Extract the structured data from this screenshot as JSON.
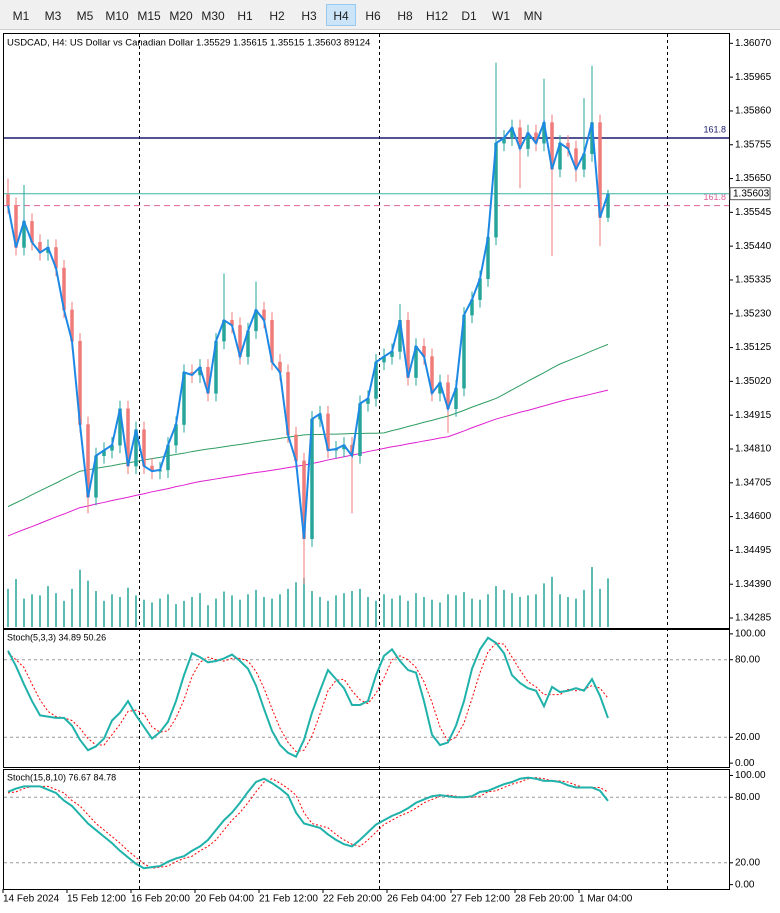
{
  "toolbar": {
    "buttons": [
      {
        "label": "M1"
      },
      {
        "label": "M3"
      },
      {
        "label": "M5"
      },
      {
        "label": "M10"
      },
      {
        "label": "M15"
      },
      {
        "label": "M20"
      },
      {
        "label": "M30"
      },
      {
        "label": "H1"
      },
      {
        "label": "H2"
      },
      {
        "label": "H3"
      },
      {
        "label": "H4",
        "selected": true
      },
      {
        "label": "H6"
      },
      {
        "label": "H8"
      },
      {
        "label": "H12"
      },
      {
        "label": "D1"
      },
      {
        "label": "W1"
      },
      {
        "label": "MN"
      }
    ]
  },
  "chart_data": [
    {
      "type": "candlestick",
      "title": "USDCAD, H4:  US Dollar vs Canadian Dollar  1.35529 1.35615 1.35515 1.35603  89124",
      "categories": [
        "14 Feb 2024",
        null,
        null,
        null,
        null,
        null,
        null,
        null,
        "15 Feb 12:00",
        null,
        null,
        null,
        null,
        null,
        null,
        null,
        "16 Feb 20:00",
        null,
        null,
        null,
        null,
        null,
        null,
        null,
        "20 Feb 04:00",
        null,
        null,
        null,
        null,
        null,
        null,
        null,
        "21 Feb 12:00",
        null,
        null,
        null,
        null,
        null,
        null,
        null,
        "22 Feb 20:00",
        null,
        null,
        null,
        null,
        null,
        null,
        null,
        "26 Feb 04:00",
        null,
        null,
        null,
        null,
        null,
        null,
        null,
        "27 Feb 12:00",
        null,
        null,
        null,
        null,
        null,
        null,
        null,
        "28 Feb 20:00",
        null,
        null,
        null,
        null,
        null,
        null,
        null,
        "1 Mar 04:00",
        null,
        null,
        null
      ],
      "open": [
        1.356,
        1.35566,
        1.35436,
        1.35517,
        1.35452,
        1.3542,
        1.35436,
        1.35372,
        1.35242,
        1.35145,
        1.34886,
        1.3466,
        1.34789,
        1.34806,
        1.34822,
        1.34935,
        1.34757,
        1.3487,
        1.34757,
        1.34741,
        1.34745,
        1.34822,
        1.34886,
        1.35048,
        1.3504,
        1.35064,
        1.34983,
        1.35145,
        1.3521,
        1.35194,
        1.35097,
        1.35177,
        1.35242,
        1.3521,
        1.3508,
        1.35048,
        1.34854,
        1.34773,
        1.34531,
        1.34903,
        1.34919,
        1.34806,
        1.3481,
        1.34822,
        1.34789,
        1.34951,
        1.34967,
        1.3508,
        1.35097,
        1.35113,
        1.3521,
        1.35032,
        1.35129,
        1.35097,
        1.34983,
        1.35016,
        1.34935,
        1.34999,
        1.35226,
        1.35274,
        1.35339,
        1.35468,
        1.3576,
        1.35776,
        1.35808,
        1.35743,
        1.35792,
        1.3576,
        1.35824,
        1.35679,
        1.3576,
        1.35743,
        1.35679,
        1.35727,
        1.35824,
        1.35529
      ],
      "high": [
        1.3565,
        1.35591,
        1.3563,
        1.35542,
        1.35477,
        1.35461,
        1.35461,
        1.35397,
        1.35267,
        1.3517,
        1.34911,
        1.34814,
        1.34831,
        1.34847,
        1.3496,
        1.3496,
        1.34895,
        1.34895,
        1.34782,
        1.3477,
        1.34847,
        1.34911,
        1.35073,
        1.35073,
        1.35089,
        1.35089,
        1.3517,
        1.35355,
        1.35235,
        1.35219,
        1.35202,
        1.3533,
        1.35267,
        1.35235,
        1.35105,
        1.35073,
        1.34879,
        1.34798,
        1.34928,
        1.34944,
        1.34944,
        1.34835,
        1.34847,
        1.34847,
        1.34976,
        1.34992,
        1.35105,
        1.35122,
        1.35138,
        1.3526,
        1.35235,
        1.35154,
        1.35154,
        1.35122,
        1.35041,
        1.35041,
        1.35024,
        1.35251,
        1.35299,
        1.35364,
        1.35493,
        1.3601,
        1.35801,
        1.35833,
        1.35833,
        1.35817,
        1.35817,
        1.3596,
        1.35849,
        1.35785,
        1.35785,
        1.35768,
        1.359,
        1.36,
        1.35849,
        1.35615
      ],
      "low": [
        1.35541,
        1.35411,
        1.35411,
        1.35427,
        1.35395,
        1.35395,
        1.35347,
        1.35217,
        1.3512,
        1.34861,
        1.3461,
        1.34635,
        1.34764,
        1.34781,
        1.34797,
        1.34732,
        1.34732,
        1.34732,
        1.34716,
        1.34716,
        1.3472,
        1.34797,
        1.34861,
        1.35015,
        1.35015,
        1.34958,
        1.34958,
        1.3512,
        1.35169,
        1.35072,
        1.35072,
        1.35152,
        1.35185,
        1.35055,
        1.35023,
        1.34829,
        1.34748,
        1.3439,
        1.34506,
        1.34878,
        1.34781,
        1.34781,
        1.34785,
        1.3461,
        1.34764,
        1.34926,
        1.34942,
        1.35055,
        1.35072,
        1.35088,
        1.35007,
        1.35007,
        1.35072,
        1.34958,
        1.34958,
        1.3486,
        1.3491,
        1.34974,
        1.35201,
        1.35249,
        1.35314,
        1.35443,
        1.35735,
        1.35751,
        1.3562,
        1.35718,
        1.35735,
        1.35735,
        1.3541,
        1.35654,
        1.35718,
        1.3564,
        1.35654,
        1.35702,
        1.3544,
        1.35515
      ],
      "close": [
        1.35566,
        1.35436,
        1.35517,
        1.35452,
        1.3542,
        1.35436,
        1.35372,
        1.35242,
        1.35145,
        1.34886,
        1.3466,
        1.34789,
        1.34806,
        1.34822,
        1.34935,
        1.34757,
        1.3487,
        1.34757,
        1.34741,
        1.34745,
        1.34822,
        1.34886,
        1.35048,
        1.3504,
        1.35064,
        1.34983,
        1.35145,
        1.3521,
        1.35194,
        1.35097,
        1.35177,
        1.35242,
        1.3521,
        1.3508,
        1.35048,
        1.34854,
        1.34773,
        1.34531,
        1.34903,
        1.34919,
        1.34806,
        1.3481,
        1.34822,
        1.34789,
        1.34951,
        1.34967,
        1.3508,
        1.35097,
        1.35113,
        1.3521,
        1.35032,
        1.35129,
        1.35097,
        1.34983,
        1.35016,
        1.34935,
        1.34999,
        1.35226,
        1.35274,
        1.35339,
        1.35468,
        1.3576,
        1.35776,
        1.35808,
        1.35743,
        1.35792,
        1.3576,
        1.35824,
        1.35679,
        1.3576,
        1.35743,
        1.35679,
        1.35727,
        1.35824,
        1.35529,
        1.35603
      ],
      "volume": [
        70000,
        88000,
        52000,
        60000,
        58000,
        75000,
        62000,
        48000,
        70000,
        105000,
        85000,
        66000,
        48000,
        60000,
        55000,
        72000,
        58000,
        50000,
        45000,
        52000,
        60000,
        42000,
        48000,
        55000,
        62000,
        40000,
        52000,
        65000,
        58000,
        50000,
        60000,
        68000,
        55000,
        52000,
        60000,
        70000,
        82000,
        90000,
        66000,
        55000,
        48000,
        58000,
        62000,
        66000,
        70000,
        55000,
        48000,
        60000,
        52000,
        58000,
        48000,
        62000,
        55000,
        50000,
        45000,
        60000,
        58000,
        64000,
        52000,
        50000,
        60000,
        75000,
        68000,
        62000,
        55000,
        58000,
        60000,
        80000,
        92000,
        60000,
        55000,
        52000,
        68000,
        110000,
        70000,
        89124
      ],
      "up_color": "#26a69a",
      "down_color": "#ef7b7b",
      "close_line_color": "#1e88e5",
      "volume_color": "#26a69a",
      "series": [
        {
          "color": "#2e9d62",
          "values": [
            1.34631,
            1.34643,
            1.34655,
            1.34668,
            1.3468,
            1.34692,
            1.34704,
            1.34717,
            1.34729,
            1.34741,
            1.34745,
            1.3475,
            1.34754,
            1.34758,
            1.34763,
            1.34767,
            1.34771,
            1.34776,
            1.3478,
            1.34784,
            1.34789,
            1.34793,
            1.34797,
            1.34802,
            1.34806,
            1.3481,
            1.34813,
            1.34817,
            1.34821,
            1.34824,
            1.34828,
            1.34832,
            1.34836,
            1.34839,
            1.34843,
            1.34847,
            1.3485,
            1.34854,
            1.34855,
            1.34855,
            1.34856,
            1.34856,
            1.34857,
            1.34858,
            1.34858,
            1.34859,
            1.34859,
            1.3486,
            1.34867,
            1.34873,
            1.3488,
            1.34886,
            1.34893,
            1.34899,
            1.34906,
            1.34912,
            1.34921,
            1.3493,
            1.3494,
            1.34949,
            1.34958,
            1.34967,
            1.3498,
            1.34994,
            1.35007,
            1.35021,
            1.35034,
            1.35047,
            1.35061,
            1.35074,
            1.35084,
            1.35094,
            1.35104,
            1.35115,
            1.35125,
            1.35135
          ]
        },
        {
          "color": "#e020d0",
          "values": [
            1.3454,
            1.3455,
            1.3456,
            1.34569,
            1.34579,
            1.34589,
            1.34599,
            1.34608,
            1.34618,
            1.34628,
            1.34633,
            1.34639,
            1.34644,
            1.3465,
            1.34655,
            1.3466,
            1.34666,
            1.34671,
            1.34677,
            1.34682,
            1.34687,
            1.34693,
            1.34698,
            1.34704,
            1.34709,
            1.34713,
            1.34717,
            1.34721,
            1.34725,
            1.34729,
            1.34733,
            1.34737,
            1.3474,
            1.34744,
            1.34748,
            1.34752,
            1.34756,
            1.3476,
            1.34765,
            1.3477,
            1.34776,
            1.34781,
            1.34786,
            1.34791,
            1.34796,
            1.34802,
            1.34807,
            1.34812,
            1.34817,
            1.34821,
            1.34826,
            1.3483,
            1.34835,
            1.34839,
            1.34844,
            1.34848,
            1.34857,
            1.34866,
            1.34876,
            1.34885,
            1.34894,
            1.34903,
            1.3491,
            1.34917,
            1.34924,
            1.3493,
            1.34937,
            1.34944,
            1.34951,
            1.34958,
            1.34964,
            1.3497,
            1.34975,
            1.34981,
            1.34987,
            1.34993
          ]
        }
      ],
      "hlines": [
        {
          "value": 1.35776,
          "label": "161.8",
          "color": "#1a1a6e"
        },
        {
          "value": 1.35566,
          "label": "161.8",
          "color": "#e0609a",
          "dash": true
        }
      ],
      "bid": 1.35603,
      "bid_color": "#3cb3a8",
      "ylim": [
        1.34254,
        1.36099
      ],
      "yticks": [
        {
          "value": 1.3607,
          "label": "1.36070"
        },
        1.35965,
        {
          "value": 1.3586,
          "label": "1.35860"
        },
        1.35755,
        {
          "value": 1.3565,
          "label": "1.35650"
        },
        1.35545,
        {
          "value": 1.3544,
          "label": "1.35440"
        },
        1.35335,
        {
          "value": 1.3523,
          "label": "1.35230"
        },
        1.35125,
        {
          "value": 1.3502,
          "label": "1.35020"
        },
        1.34915,
        {
          "value": 1.3481,
          "label": "1.34810"
        },
        1.34705,
        {
          "value": 1.346,
          "label": "1.34600"
        },
        1.34495,
        {
          "value": 1.3439,
          "label": "1.34390"
        },
        1.34285
      ]
    },
    {
      "type": "line",
      "title": "Stoch(5,3,3) 34.89 50.26",
      "series": [
        {
          "color": "#ff0000",
          "dash": true,
          "values": [
            85,
            80,
            74,
            61,
            49,
            40,
            36,
            35,
            33,
            27,
            19,
            14,
            14,
            22,
            30,
            40,
            41,
            38,
            28,
            24,
            25,
            35,
            49,
            67,
            78,
            82,
            80,
            79,
            81,
            81,
            79,
            71,
            58,
            42,
            27,
            16,
            9,
            10,
            21,
            38,
            56,
            64,
            65,
            56,
            49,
            46,
            54,
            66,
            80,
            83,
            80,
            74,
            63,
            47,
            28,
            17,
            20,
            31,
            50,
            70,
            86,
            93,
            92,
            82,
            72,
            63,
            59,
            53,
            53,
            53,
            57,
            56,
            57,
            60,
            58,
            50.26
          ]
        },
        {
          "color": "#20b2aa",
          "values": [
            87,
            75,
            61,
            48,
            37,
            36,
            35,
            35,
            29,
            18,
            10,
            13,
            19,
            33,
            39,
            48,
            37,
            28,
            19,
            24,
            32,
            48,
            68,
            85,
            82,
            78,
            79,
            81,
            84,
            79,
            73,
            60,
            42,
            25,
            14,
            8,
            5,
            18,
            39,
            56,
            72,
            65,
            58,
            45,
            45,
            48,
            68,
            83,
            88,
            79,
            72,
            70,
            48,
            22,
            14,
            16,
            29,
            48,
            73,
            88,
            97,
            93,
            85,
            68,
            62,
            58,
            56,
            44,
            59,
            55,
            56,
            58,
            56,
            65,
            52,
            34.89
          ]
        }
      ],
      "levels": [
        80,
        20
      ],
      "ylim": [
        -3,
        103
      ],
      "yticks": [
        {
          "value": 100,
          "label": "100.00"
        },
        {
          "value": 80,
          "label": "80.00"
        },
        {
          "value": 20,
          "label": "20.00"
        },
        {
          "value": 0,
          "label": "0.00"
        }
      ]
    },
    {
      "type": "line",
      "title": "Stoch(15,8,10) 76.67 84.78",
      "series": [
        {
          "color": "#ff0000",
          "dash": true,
          "values": [
            84,
            85,
            88,
            90,
            90,
            90,
            87,
            84,
            77,
            72,
            64,
            56,
            50,
            44,
            38,
            31,
            25,
            19,
            15,
            16,
            17,
            21,
            24,
            26,
            31,
            35,
            41,
            50,
            59,
            66,
            75,
            85,
            94,
            97,
            93,
            88,
            82,
            66,
            56,
            54,
            52,
            46,
            41,
            37,
            35,
            41,
            48,
            55,
            59,
            63,
            66,
            70,
            75,
            78,
            81,
            82,
            81,
            80,
            80,
            81,
            85,
            86,
            89,
            92,
            94,
            97,
            98,
            97,
            95,
            95,
            94,
            91,
            89,
            89,
            89,
            84.78
          ]
        },
        {
          "color": "#20b2aa",
          "values": [
            85,
            88,
            90,
            90,
            90,
            87,
            84,
            77,
            72,
            64,
            56,
            50,
            44,
            38,
            31,
            25,
            19,
            15,
            16,
            17,
            21,
            24,
            26,
            31,
            35,
            41,
            50,
            59,
            66,
            75,
            85,
            94,
            97,
            93,
            88,
            82,
            66,
            56,
            54,
            52,
            46,
            41,
            37,
            35,
            41,
            48,
            55,
            59,
            63,
            66,
            70,
            75,
            78,
            81,
            82,
            81,
            80,
            80,
            81,
            85,
            86,
            89,
            92,
            94,
            97,
            98,
            97,
            95,
            95,
            94,
            91,
            89,
            89,
            89,
            86,
            76.67
          ]
        }
      ],
      "levels": [
        80,
        20
      ],
      "ylim": [
        -4,
        105
      ],
      "yticks": [
        {
          "value": 100,
          "label": "100.00"
        },
        {
          "value": 80,
          "label": "80.00"
        },
        {
          "value": 20,
          "label": "20.00"
        },
        {
          "value": 0,
          "label": "0.00"
        }
      ]
    }
  ]
}
